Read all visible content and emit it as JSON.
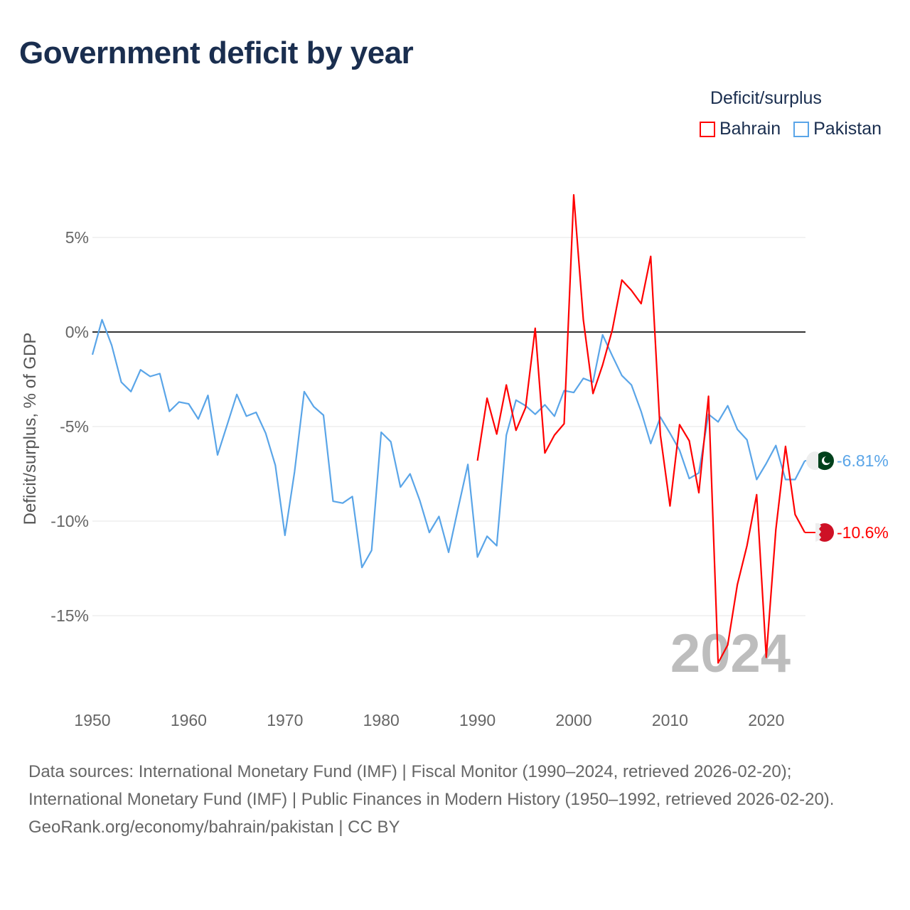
{
  "title": "Government deficit by year",
  "legend": {
    "title": "Deficit/surplus",
    "items": [
      {
        "label": "Bahrain",
        "color": "#ff0000"
      },
      {
        "label": "Pakistan",
        "color": "#5aa5e8"
      }
    ]
  },
  "chart_data": {
    "type": "line",
    "title": "Government deficit by year",
    "ylabel": "Deficit/surplus, % of GDP",
    "xlabel": "",
    "xlim": [
      1950,
      2024
    ],
    "ylim": [
      -19,
      8
    ],
    "xticks": [
      1950,
      1960,
      1970,
      1980,
      1990,
      2000,
      2010,
      2020
    ],
    "xtick_labels": [
      "1950",
      "1960",
      "1970",
      "1980",
      "1990",
      "2000",
      "2010",
      "2020"
    ],
    "yticks": [
      5,
      0,
      -5,
      -10,
      -15
    ],
    "ytick_labels": [
      "5%",
      "0%",
      "-5%",
      "-10%",
      "-15%"
    ],
    "grid": true,
    "legend_position": "top-right",
    "year_watermark": "2024",
    "series": [
      {
        "name": "Bahrain",
        "color": "#ff0000",
        "start": 1990,
        "values": [
          -6.8,
          -3.5,
          -5.4,
          -2.8,
          -5.2,
          -4.0,
          0.2,
          -6.4,
          -5.45,
          -4.85,
          7.25,
          0.65,
          -3.25,
          -1.75,
          0.1,
          2.75,
          2.2,
          1.5,
          4.0,
          -5.45,
          -9.2,
          -4.9,
          -5.75,
          -8.5,
          -3.4,
          -17.5,
          -16.55,
          -13.35,
          -11.3,
          -8.6,
          -17.2,
          -10.45,
          -6.05,
          -9.65,
          -10.6
        ],
        "end_label": "-10.6%",
        "flag": "bahrain-flag"
      },
      {
        "name": "Pakistan",
        "color": "#5aa5e8",
        "start": 1950,
        "values": [
          -1.2,
          0.65,
          -0.7,
          -2.65,
          -3.15,
          -2.0,
          -2.35,
          -2.2,
          -4.2,
          -3.7,
          -3.8,
          -4.6,
          -3.35,
          -6.5,
          -4.9,
          -3.3,
          -4.45,
          -4.25,
          -5.35,
          -7.05,
          -10.75,
          -7.4,
          -3.15,
          -3.95,
          -4.4,
          -8.95,
          -9.05,
          -8.7,
          -12.45,
          -11.55,
          -5.3,
          -5.8,
          -8.2,
          -7.5,
          -8.9,
          -10.6,
          -9.75,
          -11.65,
          -9.3,
          -7.0,
          -11.9,
          -10.8,
          -11.3,
          -5.45,
          -3.6,
          -3.9,
          -4.35,
          -3.85,
          -4.45,
          -3.1,
          -3.2,
          -2.45,
          -2.65,
          -0.15,
          -1.25,
          -2.3,
          -2.8,
          -4.2,
          -5.9,
          -4.5,
          -5.35,
          -6.25,
          -7.75,
          -7.45,
          -4.35,
          -4.75,
          -3.9,
          -5.15,
          -5.7,
          -7.8,
          -6.95,
          -6.0,
          -7.8,
          -7.8,
          -6.81
        ],
        "end_label": "-6.81%",
        "flag": "pakistan-flag"
      }
    ]
  },
  "sources": {
    "line1": "Data sources: International Monetary Fund (IMF) | Fiscal Monitor (1990–2024, retrieved 2026-02-20); International Monetary Fund (IMF) | Public Finances in Modern History (1950–1992, retrieved 2026-02-20).",
    "link": "GeoRank.org/economy/bahrain/pakistan",
    "license": " | CC BY"
  }
}
